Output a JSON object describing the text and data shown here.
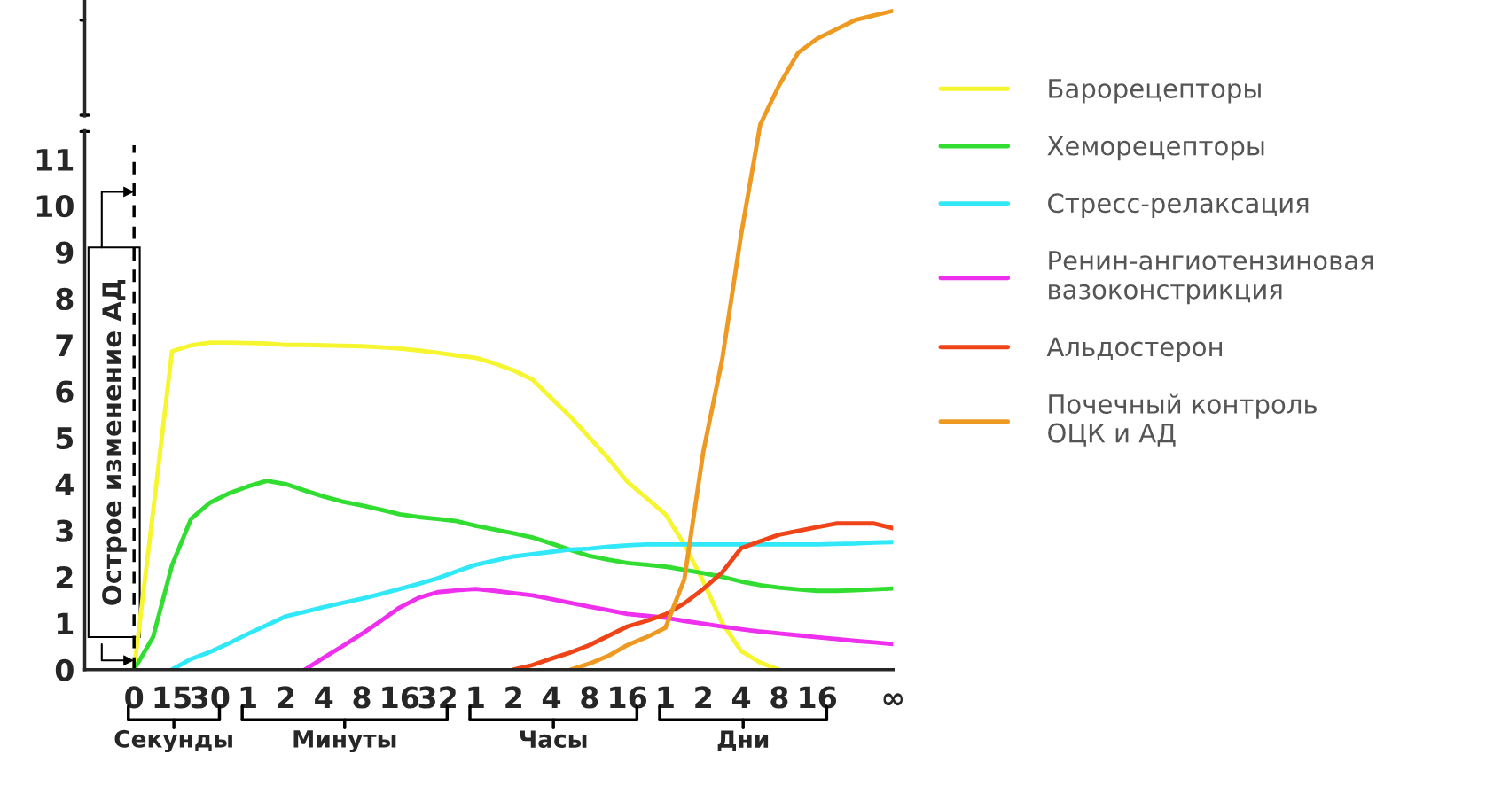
{
  "chart_data": {
    "type": "line",
    "categories": [
      "0",
      null,
      "15",
      null,
      "30",
      null,
      "1",
      null,
      "2",
      null,
      "4",
      null,
      "8",
      null,
      "16",
      null,
      "32",
      null,
      "1",
      null,
      "2",
      null,
      "4",
      null,
      "8",
      null,
      "16",
      null,
      "1",
      null,
      "2",
      null,
      "4",
      null,
      "8",
      null,
      "16",
      null,
      null,
      null,
      "∞"
    ],
    "ylim": [
      0,
      14.4
    ],
    "yticks": [
      0,
      1,
      2,
      3,
      4,
      5,
      6,
      7,
      8,
      9,
      10,
      11
    ],
    "grid": false,
    "legend": "right",
    "marker": "none",
    "line_style": "solid",
    "ref_lines": [
      {
        "axis": "x",
        "value": "0",
        "label": "Острое изменение АД",
        "line_style": "dashed",
        "color": "#000000"
      }
    ],
    "annotations": [
      "Секунды",
      "Минуты",
      "Часы",
      "Дни"
    ],
    "series": [
      {
        "name": "Барорецепторы",
        "color": "#f5f530",
        "values": [
          0,
          3.4,
          6.86,
          6.99,
          7.05,
          7.05,
          7.04,
          7.03,
          7.0,
          7.0,
          6.99,
          6.98,
          6.97,
          6.95,
          6.92,
          6.88,
          6.83,
          6.77,
          6.72,
          6.6,
          6.45,
          6.25,
          5.85,
          5.45,
          5.0,
          4.55,
          4.05,
          3.7,
          3.35,
          2.7,
          1.9,
          1.0,
          0.4,
          0.15,
          0,
          null,
          null,
          null,
          null,
          null,
          null
        ]
      },
      {
        "name": "Хеморецепторы",
        "color": "#30dd30",
        "values": [
          0,
          0.7,
          2.25,
          3.25,
          3.6,
          3.8,
          3.95,
          4.07,
          4.0,
          3.86,
          3.73,
          3.62,
          3.54,
          3.45,
          3.35,
          3.29,
          3.25,
          3.2,
          3.1,
          3.02,
          2.94,
          2.85,
          2.72,
          2.58,
          2.45,
          2.37,
          2.3,
          2.26,
          2.22,
          2.15,
          2.08,
          2.0,
          1.9,
          1.82,
          1.77,
          1.73,
          1.7,
          1.7,
          1.71,
          1.73,
          1.75
        ]
      },
      {
        "name": "Стресс-релаксация",
        "color": "#30e8f8",
        "values": [
          null,
          null,
          0,
          0.23,
          0.38,
          0.57,
          0.77,
          0.96,
          1.15,
          1.25,
          1.35,
          1.44,
          1.53,
          1.63,
          1.74,
          1.85,
          1.97,
          2.12,
          2.26,
          2.35,
          2.44,
          2.49,
          2.54,
          2.59,
          2.61,
          2.65,
          2.68,
          2.7,
          2.7,
          2.7,
          2.7,
          2.7,
          2.7,
          2.7,
          2.7,
          2.7,
          2.7,
          2.71,
          2.72,
          2.74,
          2.75
        ]
      },
      {
        "name": "Ренин-ангиотензиновая\nвазоконстрикция",
        "color": "#ee30ee",
        "values": [
          null,
          null,
          null,
          null,
          null,
          null,
          null,
          null,
          null,
          0,
          0.26,
          0.51,
          0.77,
          1.05,
          1.34,
          1.55,
          1.67,
          1.71,
          1.74,
          1.7,
          1.65,
          1.6,
          1.52,
          1.44,
          1.36,
          1.28,
          1.2,
          1.16,
          1.12,
          1.05,
          0.99,
          0.93,
          0.87,
          0.82,
          0.78,
          0.74,
          0.7,
          0.66,
          0.62,
          0.59,
          0.55
        ]
      },
      {
        "name": "Альдостерон",
        "color": "#ee4418",
        "values": [
          null,
          null,
          null,
          null,
          null,
          null,
          null,
          null,
          null,
          null,
          null,
          null,
          null,
          null,
          null,
          null,
          null,
          null,
          null,
          null,
          0,
          0.1,
          0.24,
          0.37,
          0.53,
          0.73,
          0.93,
          1.05,
          1.19,
          1.43,
          1.74,
          2.1,
          2.62,
          2.77,
          2.91,
          2.99,
          3.07,
          3.15,
          3.15,
          3.15,
          3.05
        ]
      },
      {
        "name": "Почечный контроль\nОЦК и АД",
        "color": "#ee9a22",
        "values": [
          null,
          null,
          null,
          null,
          null,
          null,
          null,
          null,
          null,
          null,
          null,
          null,
          null,
          null,
          null,
          null,
          null,
          null,
          null,
          null,
          null,
          null,
          null,
          0,
          0.13,
          0.3,
          0.53,
          0.7,
          0.9,
          1.95,
          4.7,
          6.7,
          9.4,
          11.75,
          12.6,
          13.3,
          13.6,
          13.8,
          14.0,
          14.1,
          14.2
        ]
      }
    ]
  }
}
